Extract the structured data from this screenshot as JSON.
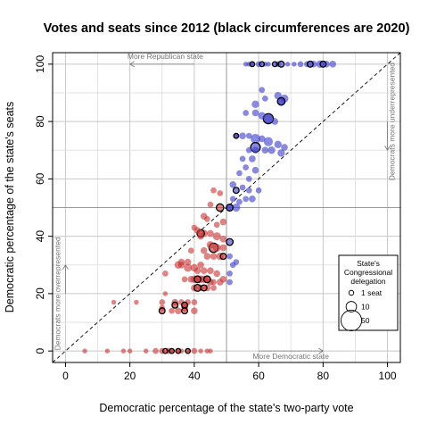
{
  "chart_data": {
    "type": "scatter",
    "title": "Votes and seats since 2012 (black circumferences are 2020)",
    "xlabel": "Democratic percentage of the state's two-party vote",
    "ylabel": "Democratic percentage of the state's seats",
    "xlim": [
      -4,
      104
    ],
    "ylim": [
      -4,
      104
    ],
    "xticks": [
      0,
      20,
      40,
      60,
      80,
      100
    ],
    "yticks": [
      0,
      20,
      40,
      60,
      80,
      100
    ],
    "grid": true,
    "reference_lines": {
      "vertical": 50,
      "horizontal": 50,
      "diagonal": "y = x"
    },
    "annotations": {
      "more_republican": "More Republican state",
      "more_democratic": "More Democratic state",
      "more_underrepresented": "Democrats more underrepresented",
      "more_overrepresented": "Democrats more overrepresented"
    },
    "legend": {
      "position": "right",
      "title": [
        "State's",
        "Congressional",
        "delegation"
      ],
      "items": [
        {
          "label": "1 seat",
          "seats": 1
        },
        {
          "label": "10",
          "seats": 10
        },
        {
          "label": "50",
          "seats": 50
        }
      ]
    },
    "colors": {
      "republican": "#c8383a",
      "democratic": "#4040c8",
      "highlight_2020": "#000000"
    },
    "points": [
      [
        56,
        100,
        1,
        0
      ],
      [
        57,
        100,
        1,
        0
      ],
      [
        58,
        100,
        1,
        0
      ],
      [
        60,
        100,
        2,
        0
      ],
      [
        62,
        100,
        1,
        0
      ],
      [
        63,
        100,
        1,
        0
      ],
      [
        66,
        100,
        2,
        0
      ],
      [
        69,
        100,
        1,
        0
      ],
      [
        71,
        100,
        1,
        0
      ],
      [
        73,
        100,
        2,
        0
      ],
      [
        75,
        100,
        2,
        0
      ],
      [
        77,
        100,
        3,
        0
      ],
      [
        79,
        100,
        4,
        0
      ],
      [
        81,
        100,
        3,
        0
      ],
      [
        83,
        100,
        3,
        0
      ],
      [
        58,
        100,
        1,
        1
      ],
      [
        61,
        100,
        1,
        1
      ],
      [
        65,
        100,
        1,
        1
      ],
      [
        67,
        100,
        2,
        1
      ],
      [
        76,
        100,
        2,
        1
      ],
      [
        80,
        100,
        2,
        1
      ],
      [
        61,
        91,
        2,
        0
      ],
      [
        62,
        88,
        2,
        0
      ],
      [
        66,
        89,
        4,
        0
      ],
      [
        67,
        87,
        6,
        0
      ],
      [
        68,
        88,
        5,
        0
      ],
      [
        59,
        86,
        4,
        0
      ],
      [
        67,
        87,
        4,
        1
      ],
      [
        56,
        83,
        2,
        0
      ],
      [
        59,
        83,
        3,
        0
      ],
      [
        61,
        82,
        4,
        0
      ],
      [
        63,
        81,
        6,
        0
      ],
      [
        65,
        80,
        3,
        0
      ],
      [
        63,
        81,
        9,
        1
      ],
      [
        53,
        75,
        2,
        0
      ],
      [
        55,
        75,
        3,
        0
      ],
      [
        57,
        75,
        2,
        0
      ],
      [
        59,
        74,
        8,
        0
      ],
      [
        61,
        74,
        3,
        0
      ],
      [
        63,
        73,
        7,
        0
      ],
      [
        66,
        72,
        4,
        0
      ],
      [
        68,
        71,
        3,
        0
      ],
      [
        59,
        71,
        8,
        1
      ],
      [
        53,
        75,
        1,
        1
      ],
      [
        57,
        70,
        2,
        0
      ],
      [
        59,
        70,
        3,
        0
      ],
      [
        62,
        70,
        3,
        0
      ],
      [
        64,
        70,
        4,
        0
      ],
      [
        67,
        69,
        4,
        0
      ],
      [
        55,
        67,
        2,
        0
      ],
      [
        58,
        67,
        3,
        0
      ],
      [
        56,
        64,
        2,
        0
      ],
      [
        59,
        63,
        3,
        0
      ],
      [
        54,
        62,
        2,
        0
      ],
      [
        57,
        60,
        2,
        0
      ],
      [
        52,
        58,
        3,
        0
      ],
      [
        55,
        57,
        2,
        0
      ],
      [
        57,
        56,
        2,
        0
      ],
      [
        60,
        56,
        2,
        0
      ],
      [
        53,
        56,
        2,
        1
      ],
      [
        52,
        53,
        2,
        0
      ],
      [
        54,
        52,
        2,
        0
      ],
      [
        56,
        53,
        2,
        0
      ],
      [
        58,
        53,
        3,
        0
      ],
      [
        51,
        50,
        4,
        0
      ],
      [
        53,
        50,
        5,
        0
      ],
      [
        51,
        50,
        3,
        1
      ],
      [
        48,
        50,
        4,
        1
      ],
      [
        46,
        56,
        2,
        0
      ],
      [
        48,
        55,
        2,
        0
      ],
      [
        45,
        51,
        2,
        0
      ],
      [
        43,
        47,
        3,
        0
      ],
      [
        44,
        46,
        2,
        0
      ],
      [
        47,
        44,
        2,
        0
      ],
      [
        49,
        45,
        3,
        0
      ],
      [
        41,
        42,
        3,
        0
      ],
      [
        43,
        41,
        4,
        0
      ],
      [
        40,
        43,
        2,
        0
      ],
      [
        42,
        40,
        3,
        0
      ],
      [
        45,
        41,
        3,
        0
      ],
      [
        47,
        40,
        5,
        0
      ],
      [
        49,
        39,
        3,
        0
      ],
      [
        42,
        41,
        4,
        1
      ],
      [
        51,
        38,
        3,
        1
      ],
      [
        45,
        37,
        4,
        0
      ],
      [
        47,
        36,
        5,
        0
      ],
      [
        49,
        36,
        3,
        0
      ],
      [
        46,
        36,
        7,
        1
      ],
      [
        43,
        35,
        3,
        0
      ],
      [
        44,
        33,
        3,
        0
      ],
      [
        39,
        35,
        2,
        0
      ],
      [
        48,
        33,
        4,
        0
      ],
      [
        46,
        33,
        3,
        0
      ],
      [
        51,
        33,
        2,
        0
      ],
      [
        49,
        33,
        2,
        1
      ],
      [
        36,
        31,
        3,
        0
      ],
      [
        38,
        31,
        3,
        0
      ],
      [
        35,
        30,
        4,
        0
      ],
      [
        38,
        29,
        5,
        0
      ],
      [
        40,
        29,
        4,
        0
      ],
      [
        42,
        30,
        3,
        0
      ],
      [
        36,
        30,
        3,
        0
      ],
      [
        45,
        28,
        3,
        0
      ],
      [
        47,
        27,
        3,
        0
      ],
      [
        41,
        28,
        3,
        0
      ],
      [
        43,
        28,
        3,
        0
      ],
      [
        51,
        27,
        2,
        0
      ],
      [
        52,
        30,
        2,
        0
      ],
      [
        53,
        31,
        2,
        0
      ],
      [
        31,
        27,
        2,
        0
      ],
      [
        31,
        20,
        1,
        0
      ],
      [
        37,
        25,
        2,
        0
      ],
      [
        39,
        25,
        3,
        0
      ],
      [
        40,
        25,
        4,
        0
      ],
      [
        41,
        25,
        4,
        0
      ],
      [
        42,
        25,
        4,
        0
      ],
      [
        43,
        25,
        4,
        0
      ],
      [
        44,
        25,
        3,
        0
      ],
      [
        45,
        24,
        3,
        0
      ],
      [
        46,
        24,
        2,
        0
      ],
      [
        48,
        24,
        3,
        0
      ],
      [
        49,
        25,
        3,
        0
      ],
      [
        51,
        24,
        2,
        0
      ],
      [
        41,
        25,
        3,
        1
      ],
      [
        44,
        25,
        3,
        1
      ],
      [
        40,
        22,
        3,
        0
      ],
      [
        42,
        22,
        3,
        0
      ],
      [
        44,
        22,
        3,
        0
      ],
      [
        41,
        22,
        3,
        1
      ],
      [
        43,
        22,
        2,
        1
      ],
      [
        46,
        22,
        2,
        0
      ],
      [
        15,
        17,
        1,
        0
      ],
      [
        22,
        17,
        1,
        0
      ],
      [
        30,
        17,
        2,
        0
      ],
      [
        34,
        17,
        3,
        0
      ],
      [
        36,
        17,
        2,
        0
      ],
      [
        37,
        16,
        2,
        0
      ],
      [
        38,
        17,
        2,
        0
      ],
      [
        40,
        17,
        2,
        0
      ],
      [
        34,
        16,
        2,
        1
      ],
      [
        37,
        16,
        2,
        1
      ],
      [
        30,
        15,
        2,
        0
      ],
      [
        33,
        14,
        2,
        0
      ],
      [
        35,
        14,
        3,
        0
      ],
      [
        37,
        15,
        3,
        0
      ],
      [
        40,
        14,
        3,
        0
      ],
      [
        30,
        14,
        2,
        1
      ],
      [
        37,
        14,
        2,
        1
      ],
      [
        6,
        0,
        1,
        0
      ],
      [
        13,
        0,
        1,
        0
      ],
      [
        18,
        0,
        1,
        0
      ],
      [
        20,
        0,
        1,
        0
      ],
      [
        25,
        0,
        1,
        0
      ],
      [
        28,
        0,
        2,
        0
      ],
      [
        30,
        0,
        2,
        0
      ],
      [
        32,
        0,
        2,
        0
      ],
      [
        33,
        0,
        2,
        0
      ],
      [
        35,
        0,
        2,
        0
      ],
      [
        36,
        0,
        1,
        0
      ],
      [
        38,
        0,
        1,
        0
      ],
      [
        40,
        0,
        2,
        0
      ],
      [
        42,
        0,
        1,
        0
      ],
      [
        44,
        0,
        1,
        0
      ],
      [
        45,
        0,
        1,
        0
      ],
      [
        31,
        0,
        1,
        1
      ],
      [
        33,
        0,
        1,
        1
      ],
      [
        35,
        0,
        1,
        1
      ],
      [
        38,
        0,
        1,
        1
      ]
    ]
  }
}
